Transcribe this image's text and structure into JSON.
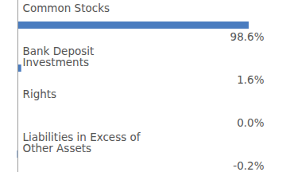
{
  "chart_data": {
    "type": "bar",
    "orientation": "horizontal",
    "categories": [
      "Common Stocks",
      "Bank Deposit Investments",
      "Rights",
      "Liabilities in Excess of Other Assets"
    ],
    "values": [
      98.6,
      1.6,
      0.0,
      -0.2
    ],
    "value_labels": [
      "98.6%",
      "1.6%",
      "0.0%",
      "-0.2%"
    ],
    "color": "#4a7cbf",
    "xlim": [
      -1,
      105
    ],
    "data_labels": true,
    "tick_labels": false,
    "grid": false
  }
}
